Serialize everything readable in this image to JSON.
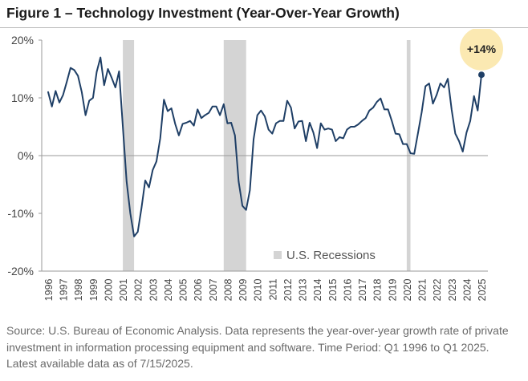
{
  "title": "Figure 1 – Technology Investment (Year-Over-Year Growth)",
  "source_note": "Source: U.S. Bureau of Economic Analysis. Data represents the year-over-year growth rate of private investment in information processing equipment and software. Time Period: Q1 1996 to Q1 2025. Latest available data as of 7/15/2025.",
  "colors": {
    "line": "#1f3f66",
    "recession": "#d4d4d4",
    "callout": "#fbe9b2",
    "marker": "#1f3f66"
  },
  "chart_data": {
    "type": "line",
    "title": "Figure 1 – Technology Investment (Year-Over-Year Growth)",
    "xlabel": "",
    "ylabel": "",
    "ylim": [
      -20,
      20
    ],
    "yticks": [
      {
        "value": 20,
        "label": "20%"
      },
      {
        "value": 10,
        "label": "10%"
      },
      {
        "value": 0,
        "label": "0%"
      },
      {
        "value": -10,
        "label": "-10%"
      },
      {
        "value": -20,
        "label": "-20%"
      }
    ],
    "xlim": [
      1996,
      2025
    ],
    "xtick_labels": [
      "1996",
      "1997",
      "1998",
      "1999",
      "2000",
      "2001",
      "2002",
      "2003",
      "2004",
      "2005",
      "2006",
      "2007",
      "2008",
      "2009",
      "2010",
      "2011",
      "2012",
      "2013",
      "2014",
      "2015",
      "2016",
      "2017",
      "2018",
      "2019",
      "2020",
      "2021",
      "2022",
      "2023",
      "2024",
      "2025"
    ],
    "grid": false,
    "legend": {
      "placement": "bottom-center",
      "entries": [
        "U.S. Recessions"
      ]
    },
    "recessions": [
      [
        2001.0,
        2001.75
      ],
      [
        2007.75,
        2009.25
      ],
      [
        2020.0,
        2020.25
      ]
    ],
    "annotation": {
      "text": "+14%",
      "x": 2025.0,
      "y": 14
    },
    "series": [
      {
        "values": [
          [
            1996.0,
            11.0
          ],
          [
            1996.25,
            8.5
          ],
          [
            1996.5,
            11.2
          ],
          [
            1996.75,
            9.2
          ],
          [
            1997.0,
            10.5
          ],
          [
            1997.25,
            12.8
          ],
          [
            1997.5,
            15.2
          ],
          [
            1997.75,
            14.8
          ],
          [
            1998.0,
            13.8
          ],
          [
            1998.25,
            11.0
          ],
          [
            1998.5,
            7.0
          ],
          [
            1998.75,
            9.5
          ],
          [
            1999.0,
            10.0
          ],
          [
            1999.25,
            14.5
          ],
          [
            1999.5,
            17.0
          ],
          [
            1999.75,
            12.2
          ],
          [
            2000.0,
            15.0
          ],
          [
            2000.25,
            13.5
          ],
          [
            2000.5,
            11.8
          ],
          [
            2000.75,
            14.6
          ],
          [
            2001.0,
            5.0
          ],
          [
            2001.25,
            -4.5
          ],
          [
            2001.5,
            -10.0
          ],
          [
            2001.75,
            -14.0
          ],
          [
            2002.0,
            -13.2
          ],
          [
            2002.25,
            -9.0
          ],
          [
            2002.5,
            -4.3
          ],
          [
            2002.75,
            -5.5
          ],
          [
            2003.0,
            -2.5
          ],
          [
            2003.25,
            -1.0
          ],
          [
            2003.5,
            3.0
          ],
          [
            2003.75,
            9.7
          ],
          [
            2004.0,
            7.7
          ],
          [
            2004.25,
            8.2
          ],
          [
            2004.5,
            5.5
          ],
          [
            2004.75,
            3.5
          ],
          [
            2005.0,
            5.5
          ],
          [
            2005.25,
            5.7
          ],
          [
            2005.5,
            6.0
          ],
          [
            2005.75,
            5.2
          ],
          [
            2006.0,
            8.0
          ],
          [
            2006.25,
            6.5
          ],
          [
            2006.5,
            7.0
          ],
          [
            2006.75,
            7.4
          ],
          [
            2007.0,
            8.5
          ],
          [
            2007.25,
            8.5
          ],
          [
            2007.5,
            7.0
          ],
          [
            2007.75,
            8.9
          ],
          [
            2008.0,
            5.6
          ],
          [
            2008.25,
            5.7
          ],
          [
            2008.5,
            3.5
          ],
          [
            2008.75,
            -4.5
          ],
          [
            2009.0,
            -8.7
          ],
          [
            2009.25,
            -9.4
          ],
          [
            2009.5,
            -6.0
          ],
          [
            2009.75,
            2.8
          ],
          [
            2010.0,
            7.0
          ],
          [
            2010.25,
            7.8
          ],
          [
            2010.5,
            6.8
          ],
          [
            2010.75,
            4.5
          ],
          [
            2011.0,
            3.8
          ],
          [
            2011.25,
            5.6
          ],
          [
            2011.5,
            6.0
          ],
          [
            2011.75,
            6.0
          ],
          [
            2012.0,
            9.5
          ],
          [
            2012.25,
            8.3
          ],
          [
            2012.5,
            4.7
          ],
          [
            2012.75,
            5.9
          ],
          [
            2013.0,
            6.0
          ],
          [
            2013.25,
            2.5
          ],
          [
            2013.5,
            5.7
          ],
          [
            2013.75,
            4.0
          ],
          [
            2014.0,
            1.3
          ],
          [
            2014.25,
            5.6
          ],
          [
            2014.5,
            4.5
          ],
          [
            2014.75,
            4.7
          ],
          [
            2015.0,
            4.5
          ],
          [
            2015.25,
            2.5
          ],
          [
            2015.5,
            3.2
          ],
          [
            2015.75,
            3.0
          ],
          [
            2016.0,
            4.5
          ],
          [
            2016.25,
            5.0
          ],
          [
            2016.5,
            5.0
          ],
          [
            2016.75,
            5.4
          ],
          [
            2017.0,
            6.0
          ],
          [
            2017.25,
            6.5
          ],
          [
            2017.5,
            7.8
          ],
          [
            2017.75,
            8.3
          ],
          [
            2018.0,
            9.3
          ],
          [
            2018.25,
            9.9
          ],
          [
            2018.5,
            8.0
          ],
          [
            2018.75,
            8.0
          ],
          [
            2019.0,
            6.0
          ],
          [
            2019.25,
            3.8
          ],
          [
            2019.5,
            3.7
          ],
          [
            2019.75,
            2.0
          ],
          [
            2020.0,
            2.0
          ],
          [
            2020.25,
            0.4
          ],
          [
            2020.5,
            0.3
          ],
          [
            2020.75,
            3.9
          ],
          [
            2021.0,
            7.5
          ],
          [
            2021.25,
            12.0
          ],
          [
            2021.5,
            12.5
          ],
          [
            2021.75,
            9.0
          ],
          [
            2022.0,
            10.5
          ],
          [
            2022.25,
            12.5
          ],
          [
            2022.5,
            11.8
          ],
          [
            2022.75,
            13.3
          ],
          [
            2023.0,
            8.0
          ],
          [
            2023.25,
            3.8
          ],
          [
            2023.5,
            2.5
          ],
          [
            2023.75,
            0.7
          ],
          [
            2024.0,
            4.0
          ],
          [
            2024.25,
            6.0
          ],
          [
            2024.5,
            10.3
          ],
          [
            2024.75,
            7.8
          ],
          [
            2025.0,
            14.0
          ]
        ]
      }
    ]
  }
}
